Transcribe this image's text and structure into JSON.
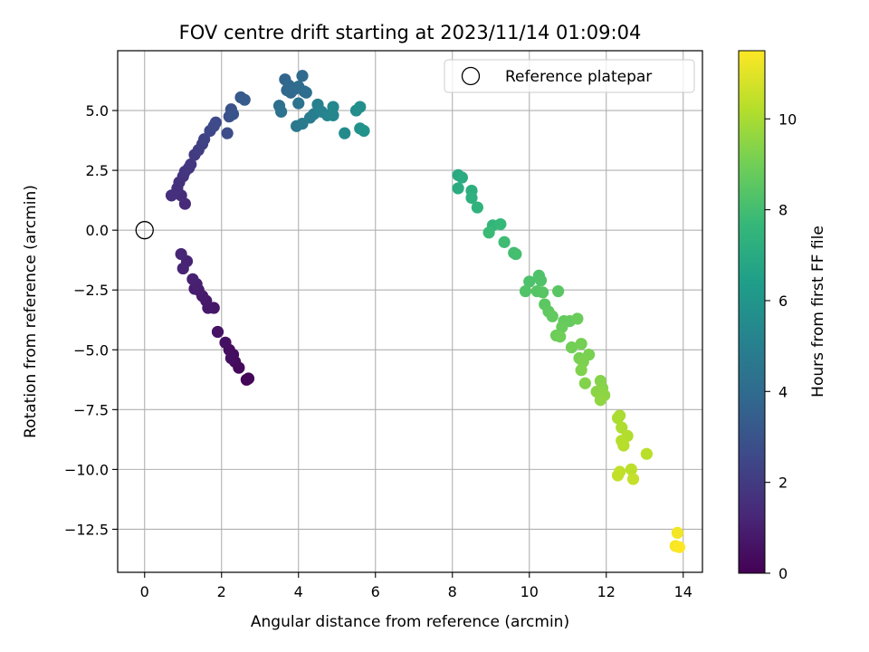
{
  "chart_data": {
    "type": "scatter",
    "title": "FOV centre drift starting at 2023/11/14 01:09:04",
    "xlabel": "Angular distance from reference (arcmin)",
    "ylabel": "Rotation from reference (arcmin)",
    "xlim": [
      -0.7,
      14.5
    ],
    "ylim": [
      -14.3,
      7.5
    ],
    "xticks": [
      0,
      2,
      4,
      6,
      8,
      10,
      12,
      14
    ],
    "yticks": [
      5.0,
      2.5,
      0.0,
      -2.5,
      -5.0,
      -7.5,
      -10.0,
      -12.5
    ],
    "xtick_labels": [
      "0",
      "2",
      "4",
      "6",
      "8",
      "10",
      "12",
      "14"
    ],
    "ytick_labels": [
      "5.0",
      "2.5",
      "0.0",
      "−2.5",
      "−5.0",
      "−7.5",
      "−10.0",
      "−12.5"
    ],
    "grid": true,
    "legend": {
      "position": "top-right",
      "label": "Reference platepar"
    },
    "reference_point": {
      "x": 0,
      "y": 0
    },
    "colorbar": {
      "label": "Hours from first FF file",
      "range": [
        0,
        11.5
      ],
      "ticks": [
        0,
        2,
        4,
        6,
        8,
        10
      ],
      "tick_labels": [
        "0",
        "2",
        "4",
        "6",
        "8",
        "10"
      ],
      "colormap": "viridis"
    },
    "series": [
      {
        "points": [
          {
            "x": 2.65,
            "y": -6.25,
            "h": 0.1
          },
          {
            "x": 2.7,
            "y": -6.2,
            "h": 0.15
          },
          {
            "x": 2.45,
            "y": -5.75,
            "h": 0.25
          },
          {
            "x": 2.35,
            "y": -5.5,
            "h": 0.3
          },
          {
            "x": 2.3,
            "y": -5.2,
            "h": 0.35
          },
          {
            "x": 2.2,
            "y": -5.0,
            "h": 0.4
          },
          {
            "x": 2.25,
            "y": -5.35,
            "h": 0.45
          },
          {
            "x": 2.1,
            "y": -4.7,
            "h": 0.5
          },
          {
            "x": 1.9,
            "y": -4.25,
            "h": 0.6
          },
          {
            "x": 1.8,
            "y": -3.25,
            "h": 0.7
          },
          {
            "x": 1.65,
            "y": -3.25,
            "h": 0.75
          },
          {
            "x": 1.6,
            "y": -2.95,
            "h": 0.8
          },
          {
            "x": 1.5,
            "y": -2.75,
            "h": 0.85
          },
          {
            "x": 1.4,
            "y": -2.5,
            "h": 0.9
          },
          {
            "x": 1.3,
            "y": -2.45,
            "h": 0.95
          },
          {
            "x": 1.35,
            "y": -2.25,
            "h": 1.0
          },
          {
            "x": 1.25,
            "y": -2.05,
            "h": 1.05
          },
          {
            "x": 1.1,
            "y": -1.3,
            "h": 1.1
          },
          {
            "x": 1.0,
            "y": -1.6,
            "h": 1.15
          },
          {
            "x": 0.95,
            "y": -1.0,
            "h": 1.2
          },
          {
            "x": 1.05,
            "y": 1.1,
            "h": 1.4
          },
          {
            "x": 0.95,
            "y": 1.45,
            "h": 1.5
          },
          {
            "x": 0.7,
            "y": 1.45,
            "h": 1.55
          },
          {
            "x": 0.85,
            "y": 1.75,
            "h": 1.6
          },
          {
            "x": 0.9,
            "y": 2.0,
            "h": 1.65
          },
          {
            "x": 1.0,
            "y": 2.25,
            "h": 1.7
          },
          {
            "x": 1.05,
            "y": 2.45,
            "h": 1.8
          },
          {
            "x": 1.15,
            "y": 2.6,
            "h": 1.85
          },
          {
            "x": 1.2,
            "y": 2.75,
            "h": 1.9
          },
          {
            "x": 1.3,
            "y": 3.15,
            "h": 2.0
          },
          {
            "x": 1.4,
            "y": 3.35,
            "h": 2.1
          },
          {
            "x": 1.5,
            "y": 3.6,
            "h": 2.2
          },
          {
            "x": 1.55,
            "y": 3.8,
            "h": 2.3
          },
          {
            "x": 1.7,
            "y": 4.15,
            "h": 2.45
          },
          {
            "x": 1.8,
            "y": 4.35,
            "h": 2.55
          },
          {
            "x": 1.85,
            "y": 4.5,
            "h": 2.6
          },
          {
            "x": 2.15,
            "y": 4.05,
            "h": 2.7
          },
          {
            "x": 2.2,
            "y": 4.75,
            "h": 2.8
          },
          {
            "x": 2.25,
            "y": 5.05,
            "h": 2.9
          },
          {
            "x": 2.3,
            "y": 4.85,
            "h": 3.0
          },
          {
            "x": 2.5,
            "y": 5.55,
            "h": 3.2
          },
          {
            "x": 2.6,
            "y": 5.45,
            "h": 3.3
          },
          {
            "x": 3.65,
            "y": 6.3,
            "h": 3.7
          },
          {
            "x": 3.7,
            "y": 5.85,
            "h": 3.8
          },
          {
            "x": 3.75,
            "y": 6.05,
            "h": 3.85
          },
          {
            "x": 3.8,
            "y": 5.75,
            "h": 3.9
          },
          {
            "x": 3.9,
            "y": 5.9,
            "h": 3.95
          },
          {
            "x": 4.1,
            "y": 6.45,
            "h": 4.0
          },
          {
            "x": 4.0,
            "y": 6.0,
            "h": 4.05
          },
          {
            "x": 4.15,
            "y": 5.8,
            "h": 4.1
          },
          {
            "x": 4.2,
            "y": 5.75,
            "h": 4.15
          },
          {
            "x": 3.5,
            "y": 5.2,
            "h": 4.2
          },
          {
            "x": 3.55,
            "y": 4.95,
            "h": 4.3
          },
          {
            "x": 4.0,
            "y": 5.3,
            "h": 4.4
          },
          {
            "x": 3.95,
            "y": 4.35,
            "h": 4.6
          },
          {
            "x": 4.1,
            "y": 4.45,
            "h": 4.7
          },
          {
            "x": 4.3,
            "y": 4.7,
            "h": 4.8
          },
          {
            "x": 4.4,
            "y": 4.85,
            "h": 4.9
          },
          {
            "x": 4.5,
            "y": 5.25,
            "h": 5.0
          },
          {
            "x": 4.6,
            "y": 4.95,
            "h": 5.1
          },
          {
            "x": 4.75,
            "y": 4.8,
            "h": 5.2
          },
          {
            "x": 4.9,
            "y": 4.8,
            "h": 5.3
          },
          {
            "x": 4.9,
            "y": 5.15,
            "h": 5.4
          },
          {
            "x": 5.2,
            "y": 4.05,
            "h": 5.5
          },
          {
            "x": 5.5,
            "y": 5.0,
            "h": 5.6
          },
          {
            "x": 5.6,
            "y": 5.15,
            "h": 5.7
          },
          {
            "x": 5.6,
            "y": 4.25,
            "h": 5.8
          },
          {
            "x": 5.7,
            "y": 4.15,
            "h": 5.9
          },
          {
            "x": 8.15,
            "y": 2.3,
            "h": 7.0
          },
          {
            "x": 8.25,
            "y": 2.2,
            "h": 7.05
          },
          {
            "x": 8.15,
            "y": 1.75,
            "h": 7.1
          },
          {
            "x": 8.5,
            "y": 1.65,
            "h": 7.2
          },
          {
            "x": 8.5,
            "y": 1.35,
            "h": 7.3
          },
          {
            "x": 8.65,
            "y": 0.95,
            "h": 7.4
          },
          {
            "x": 9.05,
            "y": 0.2,
            "h": 7.6
          },
          {
            "x": 9.25,
            "y": 0.25,
            "h": 7.7
          },
          {
            "x": 8.95,
            "y": -0.1,
            "h": 7.8
          },
          {
            "x": 9.35,
            "y": -0.5,
            "h": 7.9
          },
          {
            "x": 9.6,
            "y": -0.95,
            "h": 8.0
          },
          {
            "x": 9.65,
            "y": -1.0,
            "h": 8.05
          },
          {
            "x": 10.0,
            "y": -2.15,
            "h": 8.2
          },
          {
            "x": 10.25,
            "y": -1.9,
            "h": 8.25
          },
          {
            "x": 10.3,
            "y": -2.1,
            "h": 8.3
          },
          {
            "x": 9.9,
            "y": -2.55,
            "h": 8.35
          },
          {
            "x": 10.2,
            "y": -2.55,
            "h": 8.4
          },
          {
            "x": 10.35,
            "y": -2.6,
            "h": 8.45
          },
          {
            "x": 10.75,
            "y": -2.55,
            "h": 8.5
          },
          {
            "x": 10.4,
            "y": -3.1,
            "h": 8.55
          },
          {
            "x": 10.5,
            "y": -3.4,
            "h": 8.6
          },
          {
            "x": 10.6,
            "y": -3.6,
            "h": 8.65
          },
          {
            "x": 10.9,
            "y": -3.8,
            "h": 8.7
          },
          {
            "x": 11.05,
            "y": -3.8,
            "h": 8.75
          },
          {
            "x": 10.85,
            "y": -4.05,
            "h": 8.8
          },
          {
            "x": 11.25,
            "y": -3.7,
            "h": 8.85
          },
          {
            "x": 10.7,
            "y": -4.4,
            "h": 8.9
          },
          {
            "x": 10.8,
            "y": -4.45,
            "h": 8.95
          },
          {
            "x": 11.1,
            "y": -4.9,
            "h": 9.0
          },
          {
            "x": 11.35,
            "y": -4.75,
            "h": 9.05
          },
          {
            "x": 11.3,
            "y": -5.35,
            "h": 9.1
          },
          {
            "x": 11.55,
            "y": -5.2,
            "h": 9.15
          },
          {
            "x": 11.4,
            "y": -5.5,
            "h": 9.2
          },
          {
            "x": 11.35,
            "y": -5.85,
            "h": 9.25
          },
          {
            "x": 11.45,
            "y": -6.4,
            "h": 9.3
          },
          {
            "x": 11.85,
            "y": -6.3,
            "h": 9.35
          },
          {
            "x": 11.9,
            "y": -6.6,
            "h": 9.4
          },
          {
            "x": 11.75,
            "y": -6.75,
            "h": 9.45
          },
          {
            "x": 11.95,
            "y": -6.9,
            "h": 9.5
          },
          {
            "x": 11.85,
            "y": -7.1,
            "h": 9.55
          },
          {
            "x": 12.35,
            "y": -7.75,
            "h": 10.0
          },
          {
            "x": 12.3,
            "y": -7.85,
            "h": 10.05
          },
          {
            "x": 12.4,
            "y": -8.25,
            "h": 10.1
          },
          {
            "x": 12.55,
            "y": -8.6,
            "h": 10.15
          },
          {
            "x": 12.4,
            "y": -8.8,
            "h": 10.2
          },
          {
            "x": 12.45,
            "y": -9.0,
            "h": 10.25
          },
          {
            "x": 13.05,
            "y": -9.35,
            "h": 10.3
          },
          {
            "x": 12.65,
            "y": -10.0,
            "h": 10.35
          },
          {
            "x": 12.35,
            "y": -10.1,
            "h": 10.4
          },
          {
            "x": 12.3,
            "y": -10.25,
            "h": 10.45
          },
          {
            "x": 12.7,
            "y": -10.4,
            "h": 10.5
          },
          {
            "x": 13.85,
            "y": -12.65,
            "h": 11.3
          },
          {
            "x": 13.8,
            "y": -13.2,
            "h": 11.4
          },
          {
            "x": 13.9,
            "y": -13.25,
            "h": 11.5
          }
        ]
      }
    ]
  }
}
